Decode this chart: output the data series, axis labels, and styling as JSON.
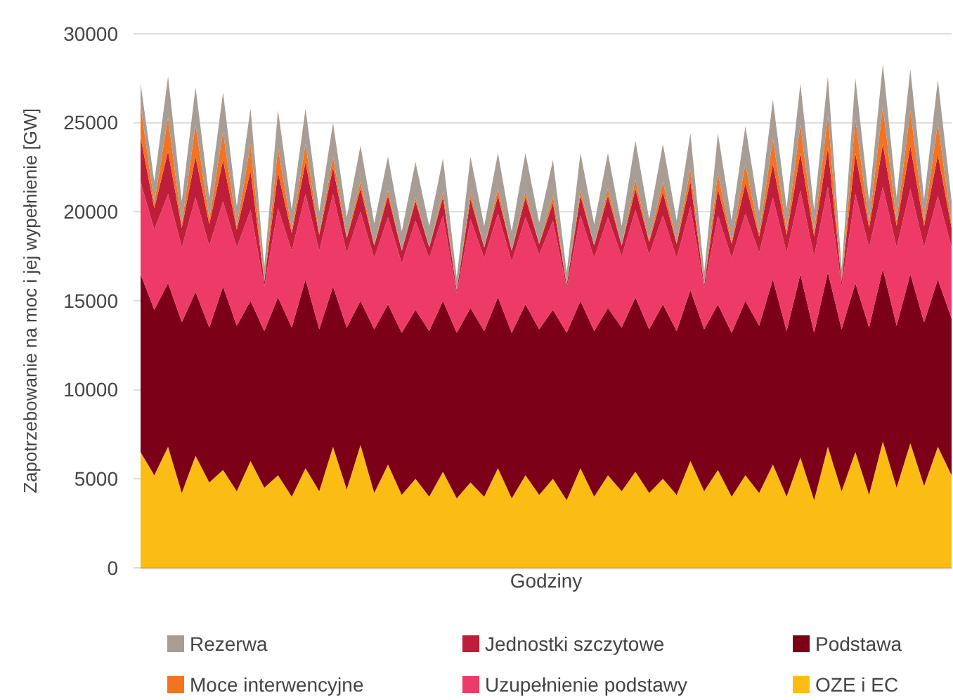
{
  "chart_data": {
    "type": "area",
    "stacked": true,
    "xlabel": "Godziny",
    "ylabel": "Zapotrzebowanie na moc i jej wypełnienie [GW]",
    "ylim": [
      0,
      30000
    ],
    "yticks": [
      0,
      5000,
      10000,
      15000,
      20000,
      25000,
      30000
    ],
    "grid": "y",
    "legend": "bottom",
    "tick_labels": "y",
    "categories": [
      null,
      null,
      null,
      null,
      null,
      null,
      null,
      null,
      null,
      null,
      null,
      null,
      null,
      null,
      null,
      null,
      null,
      null,
      null,
      null,
      null,
      null,
      null,
      null,
      null,
      null,
      null,
      null,
      null,
      null,
      null,
      null,
      null,
      null,
      null,
      null,
      null,
      null,
      null,
      null,
      null,
      null,
      null,
      null,
      null,
      null,
      null,
      null,
      null,
      null,
      null,
      null,
      null,
      null,
      null,
      null,
      null,
      null,
      null,
      null
    ],
    "series": [
      {
        "name": "OZE i EC",
        "color": "#fbbd13",
        "values": [
          6500,
          5200,
          6800,
          4200,
          6300,
          4800,
          5500,
          4300,
          6000,
          4500,
          5200,
          4000,
          5600,
          4300,
          6800,
          4400,
          6900,
          4200,
          5800,
          4100,
          5000,
          4000,
          5400,
          3900,
          4800,
          4000,
          5600,
          3900,
          5200,
          4100,
          5000,
          3800,
          5600,
          4000,
          5200,
          4300,
          5400,
          4200,
          5000,
          4100,
          6000,
          4300,
          5500,
          4000,
          5200,
          4200,
          5800,
          4000,
          6200,
          3800,
          6800,
          4300,
          6500,
          4100,
          7100,
          4500,
          7000,
          4600,
          6800,
          5200
        ]
      },
      {
        "name": "Podstawa",
        "color": "#7d0019",
        "values": [
          10000,
          9300,
          9200,
          9600,
          9200,
          8700,
          10300,
          9300,
          9000,
          8800,
          10000,
          9500,
          10600,
          9100,
          9000,
          9100,
          8100,
          9200,
          9000,
          9100,
          9500,
          9300,
          9600,
          9300,
          9800,
          9300,
          9600,
          9300,
          9600,
          9300,
          9500,
          9400,
          9400,
          9300,
          9400,
          9200,
          9800,
          9200,
          9800,
          9200,
          9600,
          9100,
          9300,
          9200,
          9800,
          9400,
          10400,
          9300,
          10300,
          9400,
          9800,
          9100,
          9500,
          9400,
          9700,
          9100,
          9500,
          9200,
          9400,
          8800
        ]
      },
      {
        "name": "Uzupełnienie podstawy",
        "color": "#ee3a67",
        "values": [
          5200,
          4500,
          5000,
          4200,
          5300,
          4600,
          4800,
          4400,
          5100,
          2500,
          5000,
          4300,
          4800,
          4400,
          5200,
          4200,
          5000,
          4000,
          4900,
          3900,
          5000,
          4100,
          4800,
          2200,
          5000,
          4100,
          4700,
          4000,
          4900,
          4200,
          5000,
          2500,
          4800,
          4100,
          5100,
          4000,
          4900,
          4200,
          5000,
          4100,
          4700,
          2300,
          5000,
          4200,
          4900,
          4100,
          4600,
          4400,
          4700,
          4300,
          4800,
          2400,
          5000,
          4500,
          4600,
          4400,
          4800,
          4200,
          4700,
          4000
        ]
      },
      {
        "name": "Jednostki szczytowe",
        "color": "#bf1e3a",
        "values": [
          2500,
          1200,
          2400,
          1100,
          2300,
          1200,
          2300,
          1000,
          2200,
          300,
          2000,
          1000,
          1800,
          900,
          1500,
          800,
          1300,
          700,
          1200,
          700,
          1100,
          600,
          1000,
          200,
          1100,
          600,
          1000,
          600,
          1100,
          600,
          1000,
          200,
          1100,
          700,
          1200,
          600,
          1200,
          700,
          1300,
          800,
          1400,
          200,
          1500,
          800,
          1700,
          900,
          1900,
          1000,
          2100,
          1100,
          2200,
          300,
          2300,
          1100,
          2400,
          1200,
          2400,
          1200,
          2300,
          1100
        ]
      },
      {
        "name": "Moce interwencyjne",
        "color": "#f47321",
        "values": [
          1800,
          300,
          1900,
          200,
          1800,
          300,
          1600,
          200,
          1500,
          0,
          1400,
          200,
          1000,
          100,
          600,
          100,
          400,
          50,
          300,
          0,
          200,
          0,
          300,
          0,
          300,
          0,
          400,
          0,
          300,
          0,
          400,
          0,
          300,
          0,
          400,
          0,
          500,
          100,
          600,
          100,
          700,
          0,
          900,
          100,
          1100,
          200,
          1400,
          300,
          1600,
          300,
          1800,
          0,
          1900,
          300,
          2100,
          300,
          2000,
          300,
          1800,
          200
        ]
      },
      {
        "name": "Rezerwa",
        "color": "#a79d94",
        "values": [
          1200,
          1200,
          2300,
          1300,
          2100,
          1200,
          2200,
          1100,
          2000,
          800,
          2100,
          1100,
          2000,
          1200,
          1900,
          1100,
          2000,
          1200,
          1900,
          1100,
          2000,
          1200,
          1900,
          700,
          2100,
          1200,
          2000,
          1100,
          2200,
          1200,
          2000,
          700,
          2100,
          1200,
          2000,
          1100,
          2200,
          1200,
          2100,
          1200,
          2000,
          700,
          2200,
          1200,
          2100,
          1200,
          2200,
          1200,
          2300,
          1200,
          2200,
          700,
          2300,
          1200,
          2400,
          1300,
          2300,
          1200,
          2400,
          1300
        ]
      }
    ]
  }
}
